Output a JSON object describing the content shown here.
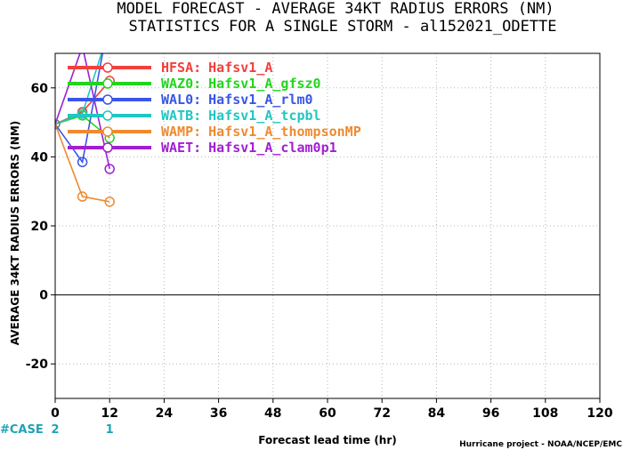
{
  "chart_data": {
    "type": "line",
    "title": "MODEL FORECAST - AVERAGE 34KT RADIUS ERRORS (NM)",
    "subtitle": "STATISTICS FOR A SINGLE STORM - al152021_ODETTE",
    "xlabel": "Forecast lead time (hr)",
    "ylabel": "AVERAGE 34KT RADIUS ERRORS (NM)",
    "xlim": [
      0,
      120
    ],
    "ylim": [
      -30,
      70
    ],
    "xticks": [
      "0",
      "12",
      "24",
      "36",
      "48",
      "60",
      "72",
      "84",
      "96",
      "108",
      "120"
    ],
    "yticks": [
      "-20",
      "0",
      "20",
      "40",
      "60"
    ],
    "grid": true,
    "zero_line": true,
    "legend_position": "top-left",
    "series": [
      {
        "name": "HFSA:",
        "desc": "Hafsv1_A",
        "color": "#f2403c",
        "x": [
          0,
          6,
          12
        ],
        "y": [
          49.5,
          53,
          62
        ]
      },
      {
        "name": "WAZ0:",
        "desc": "Hafsv1_A_gfsz0",
        "color": "#21d61c",
        "x": [
          0,
          6,
          12
        ],
        "y": [
          49.5,
          52,
          45.5
        ]
      },
      {
        "name": "WAL0:",
        "desc": "Hafsv1_A_rlm0",
        "color": "#3a55e8",
        "x": [
          0,
          6,
          12
        ],
        "y": [
          49.5,
          38.5,
          81
        ]
      },
      {
        "name": "WATB:",
        "desc": "Hafsv1_A_tcpbl",
        "color": "#1fc7c2",
        "x": [
          0,
          6,
          12
        ],
        "y": [
          49.5,
          52.5,
          77.5
        ]
      },
      {
        "name": "WAMP:",
        "desc": "Hafsv1_A_thompsonMP",
        "color": "#ef8a2f",
        "x": [
          0,
          6,
          12
        ],
        "y": [
          49.5,
          28.5,
          27
        ]
      },
      {
        "name": "WAET:",
        "desc": "Hafsv1_A_clam0p1",
        "color": "#a11fd1",
        "x": [
          0,
          6,
          12
        ],
        "y": [
          49.5,
          72,
          36.5
        ]
      }
    ],
    "cases": {
      "label": "#CASE",
      "x": [
        0,
        12
      ],
      "values": [
        "2",
        "1"
      ]
    },
    "credit": "Hurricane project - NOAA/NCEP/EMC"
  }
}
